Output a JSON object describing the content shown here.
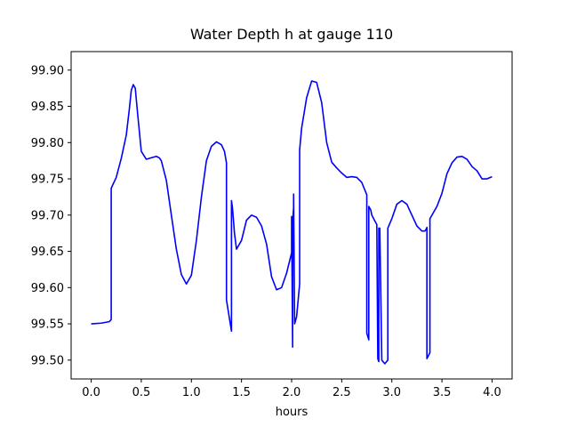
{
  "chart_data": {
    "type": "line",
    "title": "Water Depth h at gauge 110",
    "xlabel": "hours",
    "ylabel": "",
    "xlim": [
      -0.2,
      4.2
    ],
    "ylim": [
      99.474,
      99.9255
    ],
    "x_ticks": [
      "0.0",
      "0.5",
      "1.0",
      "1.5",
      "2.0",
      "2.5",
      "3.0",
      "3.5",
      "4.0"
    ],
    "y_ticks": [
      "99.50",
      "99.55",
      "99.60",
      "99.65",
      "99.70",
      "99.75",
      "99.80",
      "99.85",
      "99.90"
    ],
    "grid": false,
    "series": [
      {
        "color": "#0000ff",
        "x": [
          0.0,
          0.1,
          0.18,
          0.2,
          0.2,
          0.25,
          0.3,
          0.35,
          0.38,
          0.4,
          0.42,
          0.44,
          0.46,
          0.5,
          0.55,
          0.6,
          0.65,
          0.68,
          0.7,
          0.75,
          0.8,
          0.85,
          0.9,
          0.95,
          1.0,
          1.05,
          1.1,
          1.15,
          1.2,
          1.25,
          1.3,
          1.33,
          1.35,
          1.35,
          1.4,
          1.4,
          1.41,
          1.43,
          1.45,
          1.5,
          1.55,
          1.6,
          1.65,
          1.7,
          1.75,
          1.8,
          1.85,
          1.9,
          1.95,
          2.0,
          2.0,
          2.01,
          2.01,
          2.02,
          2.02,
          2.03,
          2.05,
          2.08,
          2.08,
          2.1,
          2.15,
          2.2,
          2.25,
          2.3,
          2.35,
          2.4,
          2.45,
          2.5,
          2.55,
          2.6,
          2.65,
          2.7,
          2.75,
          2.75,
          2.77,
          2.77,
          2.79,
          2.8,
          2.83,
          2.85,
          2.86,
          2.87,
          2.87,
          2.88,
          2.9,
          2.93,
          2.96,
          2.96,
          3.0,
          3.05,
          3.1,
          3.15,
          3.2,
          3.25,
          3.3,
          3.33,
          3.34,
          3.35,
          3.35,
          3.38,
          3.38,
          3.45,
          3.5,
          3.55,
          3.6,
          3.65,
          3.7,
          3.75,
          3.8,
          3.85,
          3.9,
          3.95,
          4.0
        ],
        "y": [
          99.55,
          99.551,
          99.553,
          99.556,
          99.737,
          99.752,
          99.778,
          99.81,
          99.845,
          99.872,
          99.88,
          99.875,
          99.845,
          99.788,
          99.777,
          99.779,
          99.781,
          99.779,
          99.775,
          99.748,
          99.7,
          99.653,
          99.618,
          99.605,
          99.617,
          99.665,
          99.725,
          99.775,
          99.795,
          99.801,
          99.797,
          99.788,
          99.772,
          99.583,
          99.54,
          99.72,
          99.71,
          99.675,
          99.653,
          99.665,
          99.693,
          99.7,
          99.697,
          99.685,
          99.66,
          99.615,
          99.597,
          99.6,
          99.62,
          99.648,
          99.698,
          99.518,
          99.692,
          99.71,
          99.729,
          99.55,
          99.56,
          99.605,
          99.79,
          99.82,
          99.862,
          99.885,
          99.883,
          99.855,
          99.8,
          99.773,
          99.765,
          99.758,
          99.752,
          99.753,
          99.752,
          99.745,
          99.728,
          99.537,
          99.528,
          99.712,
          99.707,
          99.7,
          99.692,
          99.687,
          99.502,
          99.498,
          99.682,
          99.682,
          99.5,
          99.495,
          99.5,
          99.682,
          99.695,
          99.715,
          99.72,
          99.715,
          99.7,
          99.685,
          99.678,
          99.678,
          99.68,
          99.683,
          99.502,
          99.51,
          99.695,
          99.712,
          99.73,
          99.757,
          99.772,
          99.78,
          99.781,
          99.777,
          99.767,
          99.761,
          99.75,
          99.75,
          99.753
        ]
      }
    ]
  }
}
